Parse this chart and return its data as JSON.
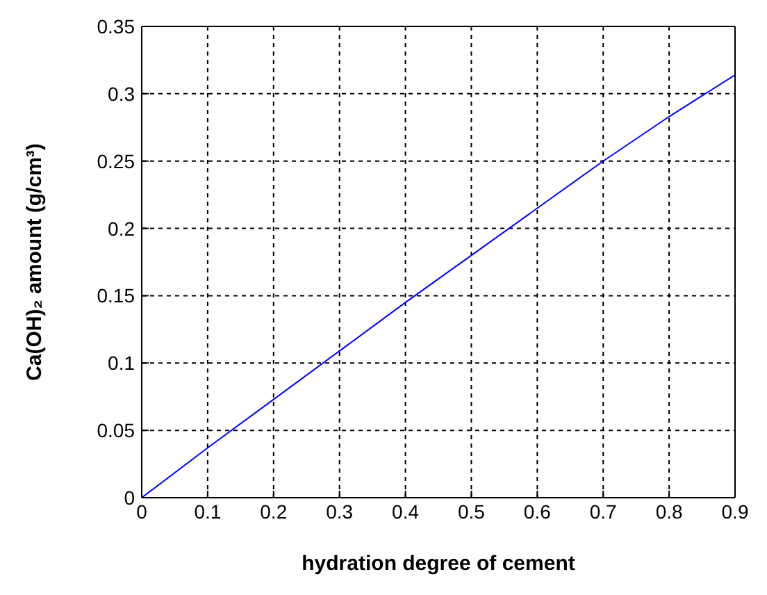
{
  "chart_data": {
    "type": "line",
    "xlabel": "hydration degree of cement",
    "ylabel": "Ca(OH)₂ amount (g/cm³)",
    "x": [
      0,
      0.1,
      0.2,
      0.3,
      0.4,
      0.5,
      0.6,
      0.7,
      0.8,
      0.9
    ],
    "series": [
      {
        "color": "#0000ff",
        "values": [
          0,
          0.037,
          0.073,
          0.109,
          0.145,
          0.18,
          0.215,
          0.25,
          0.283,
          0.314
        ]
      }
    ],
    "xlim": [
      0,
      0.9
    ],
    "xticks": [
      0,
      0.1,
      0.2,
      0.3,
      0.4,
      0.5,
      0.6,
      0.7,
      0.8,
      0.9
    ],
    "ylim": [
      0,
      0.35
    ],
    "yticks": [
      0,
      0.05,
      0.1,
      0.15,
      0.2,
      0.25,
      0.3,
      0.35
    ],
    "grid": true,
    "marker": "none",
    "line_style": "solid"
  }
}
